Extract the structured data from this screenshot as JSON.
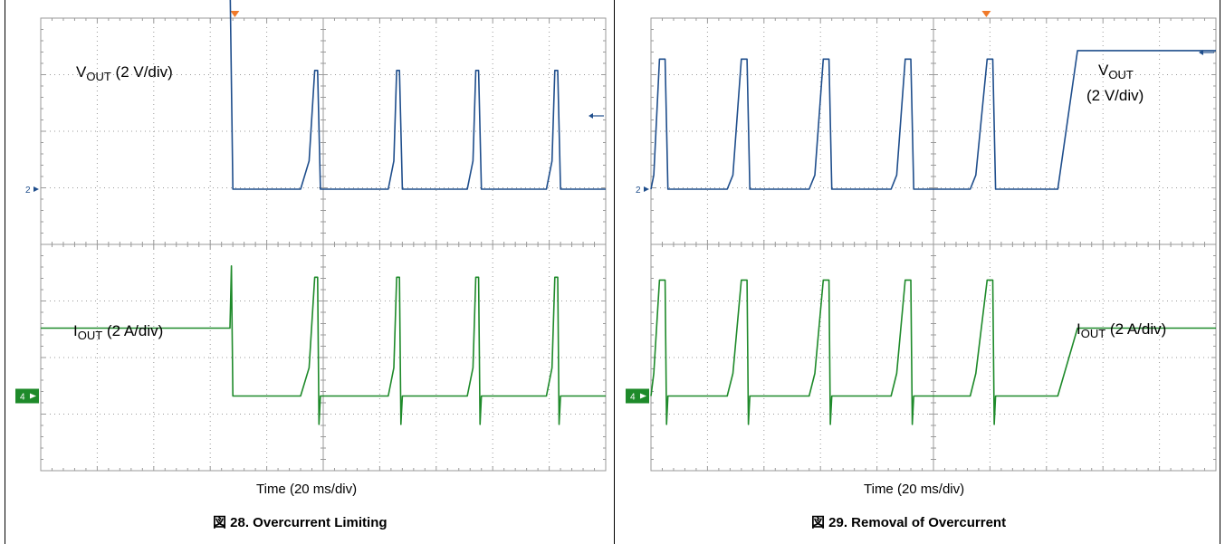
{
  "panels": [
    {
      "caption": "図 28. Overcurrent Limiting",
      "x_axis_label": "Time (20 ms/div)",
      "vout_label": {
        "main": "V",
        "sub": "OUT",
        "scale": "(2 V/div)"
      },
      "iout_label": {
        "main": "I",
        "sub": "OUT",
        "scale": "(2 A/div)"
      },
      "ch2_marker": "2",
      "ch4_marker": "4"
    },
    {
      "caption": "図 29. Removal of Overcurrent",
      "x_axis_label": "Time (20 ms/div)",
      "vout_label": {
        "main": "V",
        "sub": "OUT",
        "scale": "(2 V/div)"
      },
      "iout_label": {
        "main": "I",
        "sub": "OUT",
        "scale": "(2 A/div)"
      },
      "ch2_marker": "2",
      "ch4_marker": "4"
    }
  ],
  "colors": {
    "vout_trace": "#1f4e8c",
    "iout_trace": "#1e8a2a",
    "grid": "#9a9a9a",
    "trigger_marker": "#f07a2a",
    "ch4_badge": "#1e8a2a"
  },
  "chart_data": [
    {
      "type": "line",
      "title": "図 28. Overcurrent Limiting",
      "xlabel": "Time (20 ms/div)",
      "x_range_ms": [
        0,
        200
      ],
      "series": [
        {
          "name": "VOUT (2 V/div)",
          "x": [
            0,
            67,
            68,
            92,
            95,
            97,
            98,
            99,
            100,
            123,
            125,
            126,
            127,
            128,
            151,
            153,
            154,
            155,
            156,
            179,
            181,
            182,
            183,
            184,
            200
          ],
          "y": [
            7.5,
            7.5,
            0,
            0,
            1.0,
            4.2,
            4.2,
            0,
            0,
            0,
            1.0,
            4.2,
            4.2,
            0,
            0,
            1.0,
            4.2,
            4.2,
            0,
            0,
            1.0,
            4.2,
            4.2,
            0,
            0
          ]
        },
        {
          "name": "IOUT (2 A/div)",
          "x": [
            0,
            67,
            67.5,
            68,
            68.5,
            92,
            95,
            97,
            98,
            98.5,
            99,
            100,
            123,
            125,
            126,
            127,
            127.5,
            128,
            151,
            153,
            154,
            155,
            155.5,
            156,
            179,
            181,
            182,
            183,
            183.5,
            184,
            200
          ],
          "y": [
            2.4,
            2.4,
            4.6,
            0,
            0,
            0,
            1.0,
            4.2,
            4.2,
            -1.0,
            0,
            0,
            0,
            1.0,
            4.2,
            4.2,
            -1.0,
            0,
            0,
            1.0,
            4.2,
            4.2,
            -1.0,
            0,
            0,
            1.0,
            4.2,
            4.2,
            -1.0,
            0,
            0
          ]
        }
      ],
      "ylim": [
        -4,
        8
      ],
      "grid": true
    },
    {
      "type": "line",
      "title": "図 29. Removal of Overcurrent",
      "xlabel": "Time (20 ms/div)",
      "x_range_ms": [
        0,
        200
      ],
      "series": [
        {
          "name": "VOUT (2 V/div)",
          "x": [
            0,
            1,
            3,
            5,
            6,
            7,
            27,
            29,
            32,
            34,
            35,
            36,
            56,
            58,
            61,
            63,
            64,
            65,
            85,
            87,
            90,
            92,
            93,
            94,
            113,
            115,
            119,
            121,
            122,
            123,
            144,
            151,
            200
          ],
          "y": [
            0,
            0.5,
            4.6,
            4.6,
            0,
            0,
            0,
            0.5,
            4.6,
            4.6,
            0,
            0,
            0,
            0.5,
            4.6,
            4.6,
            0,
            0,
            0,
            0.5,
            4.6,
            4.6,
            0,
            0,
            0,
            0.5,
            4.6,
            4.6,
            0,
            0,
            0,
            4.9,
            4.9
          ]
        },
        {
          "name": "IOUT (2 A/div)",
          "x": [
            0,
            1,
            3,
            5,
            5.5,
            6,
            27,
            29,
            32,
            34,
            34.5,
            35,
            56,
            58,
            61,
            63,
            63.5,
            64,
            85,
            87,
            90,
            92,
            92.5,
            93,
            113,
            115,
            119,
            121,
            121.5,
            122,
            144,
            151,
            200
          ],
          "y": [
            0,
            0.8,
            4.1,
            4.1,
            -1.0,
            0,
            0,
            0.8,
            4.1,
            4.1,
            -1.0,
            0,
            0,
            0.8,
            4.1,
            4.1,
            -1.0,
            0,
            0,
            0.8,
            4.1,
            4.1,
            -1.0,
            0,
            0,
            0.8,
            4.1,
            4.1,
            -1.0,
            0,
            0,
            2.4,
            2.4
          ]
        }
      ],
      "ylim": [
        -4,
        8
      ],
      "grid": true
    }
  ]
}
